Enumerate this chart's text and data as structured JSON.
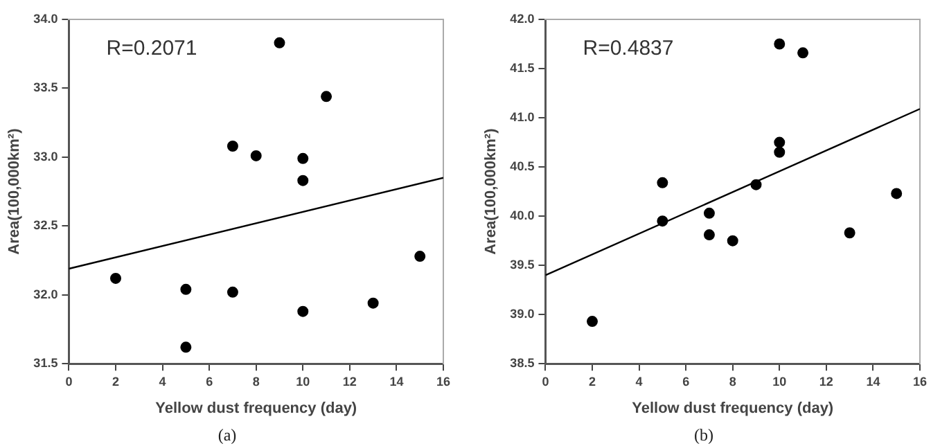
{
  "chart_data": [
    {
      "type": "scatter",
      "title": "(a)",
      "xlabel": "Yellow dust frequency (day)",
      "ylabel": "Area(100,000km²)",
      "annotations": [
        "R=0.2071"
      ],
      "xlim": [
        0,
        16
      ],
      "xticks": [
        0,
        2,
        4,
        6,
        8,
        10,
        12,
        14,
        16
      ],
      "ylim": [
        31.5,
        34.0
      ],
      "yticks": [
        {
          "value": 31.5,
          "label": "31.5"
        },
        {
          "value": 32,
          "label": "32.0"
        },
        {
          "value": 32.5,
          "label": "32.5"
        },
        {
          "value": 33,
          "label": "33.0"
        },
        {
          "value": 33.5,
          "label": "33.5"
        },
        {
          "value": 34,
          "label": "34.0"
        }
      ],
      "grid": false,
      "legend": false,
      "series": [
        {
          "marker": "circle",
          "color": "#000000",
          "x": [
            2,
            5,
            5,
            7,
            7,
            8,
            9,
            10,
            10,
            10,
            11,
            13,
            15
          ],
          "values": [
            32.12,
            32.04,
            31.62,
            33.08,
            32.02,
            33.01,
            33.83,
            32.99,
            32.83,
            31.88,
            33.44,
            31.94,
            32.28
          ]
        },
        {
          "type": "line",
          "marker": "none",
          "color": "#000000",
          "line_style": "solid",
          "x": [
            0,
            16
          ],
          "values": [
            32.19,
            32.85
          ]
        }
      ]
    },
    {
      "type": "scatter",
      "title": "(b)",
      "xlabel": "Yellow dust frequency (day)",
      "ylabel": "Area(100,000km²)",
      "annotations": [
        "R=0.4837"
      ],
      "xlim": [
        0,
        16
      ],
      "xticks": [
        0,
        2,
        4,
        6,
        8,
        10,
        12,
        14,
        16
      ],
      "ylim": [
        38.5,
        42.0
      ],
      "yticks": [
        {
          "value": 38.5,
          "label": "38.5"
        },
        {
          "value": 39,
          "label": "39.0"
        },
        {
          "value": 39.5,
          "label": "39.5"
        },
        {
          "value": 40,
          "label": "40.0"
        },
        {
          "value": 40.5,
          "label": "40.5"
        },
        {
          "value": 41,
          "label": "41.0"
        },
        {
          "value": 41.5,
          "label": "41.5"
        },
        {
          "value": 42,
          "label": "42.0"
        }
      ],
      "grid": false,
      "legend": false,
      "series": [
        {
          "marker": "circle",
          "color": "#000000",
          "x": [
            2,
            5,
            5,
            7,
            7,
            8,
            9,
            10,
            10,
            10,
            11,
            13,
            15
          ],
          "values": [
            38.93,
            40.34,
            39.95,
            40.03,
            39.81,
            39.75,
            40.32,
            41.75,
            40.75,
            40.65,
            41.66,
            39.83,
            40.23
          ]
        },
        {
          "type": "line",
          "marker": "none",
          "color": "#000000",
          "line_style": "solid",
          "x": [
            0,
            16
          ],
          "values": [
            39.4,
            41.09
          ]
        }
      ]
    }
  ]
}
